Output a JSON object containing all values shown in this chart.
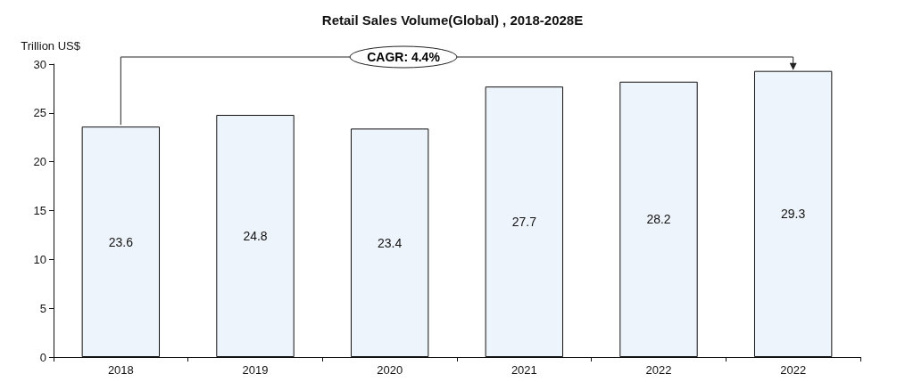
{
  "chart_data": {
    "type": "bar",
    "title": "Retail Sales Volume(Global) , 2018-2028E",
    "ylabel": "Trillion US$",
    "categories": [
      "2018",
      "2019",
      "2020",
      "2021",
      "2022",
      "2022"
    ],
    "values": [
      23.6,
      24.8,
      23.4,
      27.7,
      28.2,
      29.3
    ],
    "color": "#eef4fb",
    "ylim": [
      0,
      30
    ],
    "yticks": [
      0,
      5,
      10,
      15,
      20,
      25,
      30
    ],
    "grid": false,
    "data_labels": true,
    "annotations": [
      "CAGR: 4.4%"
    ]
  }
}
